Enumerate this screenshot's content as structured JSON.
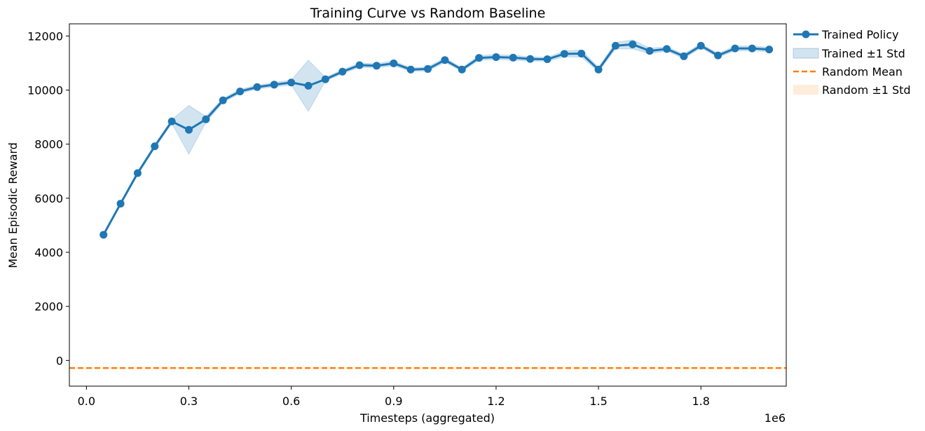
{
  "chart_data": {
    "type": "line",
    "title": "Training Curve vs Random Baseline",
    "xlabel": "Timesteps (aggregated)",
    "ylabel": "Mean Episodic Reward",
    "x_offset_text": "1e6",
    "xlim": [
      -0.05,
      2.05
    ],
    "ylim": [
      -950,
      12450
    ],
    "x_ticks": [
      0.0,
      0.3,
      0.6,
      0.9,
      1.2,
      1.5,
      1.8
    ],
    "x_tick_labels": [
      "0.0",
      "0.3",
      "0.6",
      "0.9",
      "1.2",
      "1.5",
      "1.8"
    ],
    "y_ticks": [
      0,
      2000,
      4000,
      6000,
      8000,
      10000,
      12000
    ],
    "y_tick_labels": [
      "0",
      "2000",
      "4000",
      "6000",
      "8000",
      "10000",
      "12000"
    ],
    "grid": false,
    "legend_position": "outside-top-right",
    "x": [
      0.05,
      0.1,
      0.15,
      0.2,
      0.25,
      0.3,
      0.35,
      0.4,
      0.45,
      0.5,
      0.55,
      0.6,
      0.65,
      0.7,
      0.75,
      0.8,
      0.85,
      0.9,
      0.95,
      1.0,
      1.05,
      1.1,
      1.15,
      1.2,
      1.25,
      1.3,
      1.35,
      1.4,
      1.45,
      1.5,
      1.55,
      1.6,
      1.65,
      1.7,
      1.75,
      1.8,
      1.85,
      1.9,
      1.95,
      2.0
    ],
    "series": [
      {
        "name": "Trained Policy",
        "kind": "line-markers",
        "color": "#1f77b4",
        "values": [
          4650,
          5800,
          6930,
          7920,
          8840,
          8530,
          8920,
          9620,
          9950,
          10110,
          10200,
          10280,
          10160,
          10400,
          10680,
          10920,
          10900,
          10990,
          10760,
          10780,
          11110,
          10760,
          11190,
          11220,
          11200,
          11150,
          11140,
          11340,
          11350,
          10760,
          11640,
          11690,
          11450,
          11520,
          11250,
          11640,
          11280,
          11540,
          11540,
          11500
        ],
        "std": [
          30,
          40,
          60,
          60,
          70,
          900,
          110,
          70,
          80,
          70,
          80,
          90,
          950,
          70,
          70,
          80,
          80,
          90,
          60,
          80,
          80,
          60,
          90,
          90,
          90,
          80,
          70,
          110,
          130,
          80,
          120,
          170,
          100,
          80,
          80,
          80,
          70,
          90,
          90,
          80
        ]
      },
      {
        "name": "Trained ±1 Std",
        "kind": "band",
        "color": "#1f77b4"
      },
      {
        "name": "Random Mean",
        "kind": "hline-dashed",
        "color": "#ff7f0e",
        "value": -280
      },
      {
        "name": "Random ±1 Std",
        "kind": "hband",
        "color": "#ff7f0e",
        "std": 20
      }
    ]
  }
}
